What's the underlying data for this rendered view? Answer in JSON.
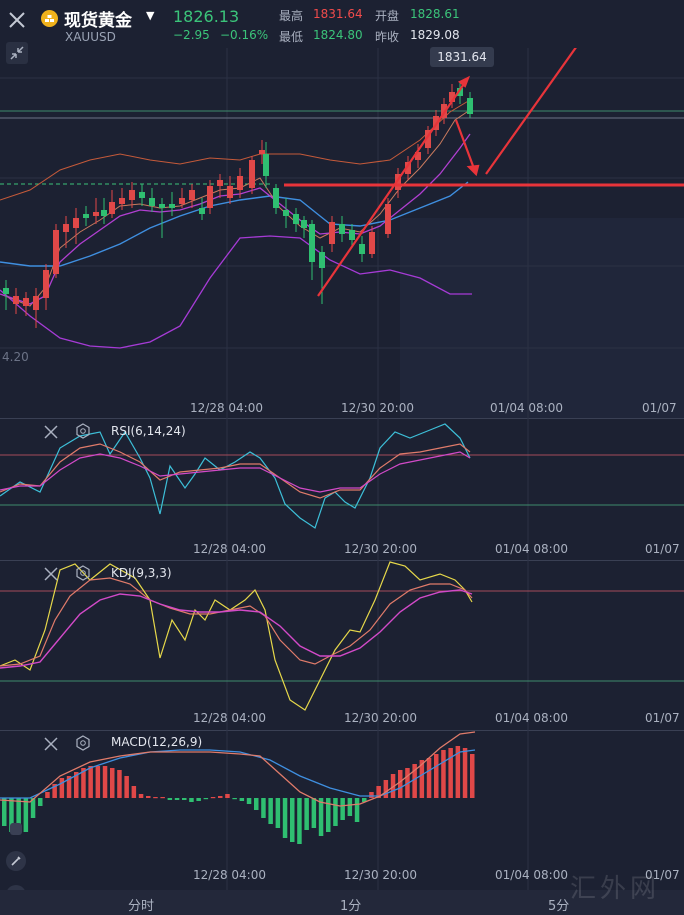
{
  "header": {
    "title": "现货黄金",
    "symbol": "XAUUSD",
    "price": "1826.13",
    "change": "−2.95",
    "change_pct": "−0.16%",
    "high_label": "最高",
    "high": "1831.64",
    "open_label": "开盘",
    "open": "1828.61",
    "low_label": "最低",
    "low": "1824.80",
    "prev_close_label": "昨收",
    "prev_close": "1829.08"
  },
  "main_chart": {
    "tooltip": "1831.64",
    "left_axis_partial": "4.20",
    "time_labels": [
      "12/28 04:00",
      "12/30 20:00",
      "01/04 08:00",
      "01/07"
    ]
  },
  "rsi": {
    "label": "RSI(6,14,24)",
    "time_labels": [
      "12/28 04:00",
      "12/30 20:00",
      "01/04 08:00",
      "01/07"
    ]
  },
  "kdj": {
    "label": "KDJ(9,3,3)",
    "time_labels": [
      "12/28 04:00",
      "12/30 20:00",
      "01/04 08:00",
      "01/07"
    ]
  },
  "macd": {
    "label": "MACD(12,26,9)",
    "time_labels": [
      "12/28 04:00",
      "12/30 20:00",
      "01/04 08:00",
      "01/07"
    ]
  },
  "bottom_tabs": [
    "分时",
    "1分",
    "5分"
  ],
  "watermark": "汇外网",
  "colors": {
    "up": "#e04848",
    "down": "#2fbf71",
    "background": "#1c2132",
    "annotation": "#e8343a"
  }
}
